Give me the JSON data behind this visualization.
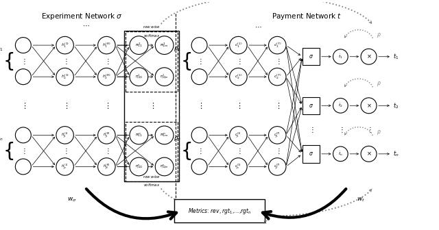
{
  "fig_width": 6.4,
  "fig_height": 3.36,
  "dpi": 100,
  "bg_color": "#ffffff",
  "title_exp": "Experiment Network $\\sigma$",
  "title_pay": "Payment Network $t$",
  "title_fontsize": 7.5,
  "metrics_text": "Metrics: rev, rgt_1,...,rgt_n",
  "bottom_label_left": "$w_\\sigma$",
  "bottom_label_right": "$w_t$",
  "node_r": 0.03,
  "circle_lw": 0.8
}
